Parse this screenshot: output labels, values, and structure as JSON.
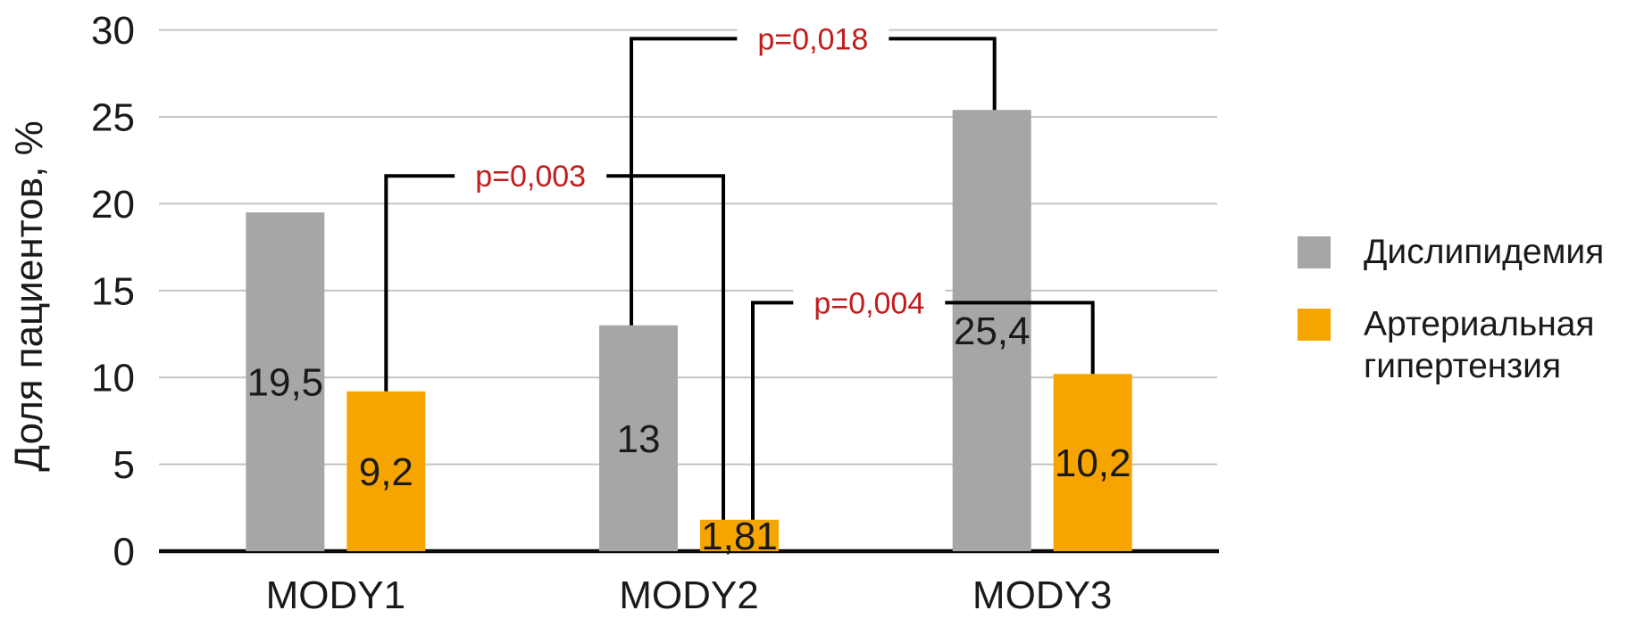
{
  "chart_data": {
    "type": "bar",
    "title": "",
    "categories": [
      "MODY1",
      "MODY2",
      "MODY3"
    ],
    "series": [
      {
        "name": "Дислипидемия",
        "color": "#a6a6a6",
        "values": [
          19.5,
          13,
          25.4
        ],
        "value_labels": [
          "19,5",
          "13",
          "25,4"
        ]
      },
      {
        "name": "Артериальная гипертензия",
        "color": "#f6a500",
        "values": [
          9.2,
          1.81,
          10.2
        ],
        "value_labels": [
          "9,2",
          "1,81",
          "10,2"
        ]
      }
    ],
    "ylabel": "Доля пациентов, %",
    "yticks": [
      0,
      5,
      10,
      15,
      20,
      25,
      30
    ],
    "ylim": [
      0,
      30
    ],
    "grid": true,
    "gridline_color": "#c3c3c3",
    "axis_color": "#0a0a0a",
    "value_label_color": "#1a1a1a",
    "legend_position": "right",
    "significance_color": "#c11c1c",
    "significance_brackets": [
      {
        "label": "p=0,003",
        "from": {
          "category": 0,
          "series": 1
        },
        "to": {
          "category": 1,
          "series": 1
        },
        "y_value": 21.6
      },
      {
        "label": "p=0,018",
        "from": {
          "category": 1,
          "series": 0
        },
        "to": {
          "category": 2,
          "series": 0
        },
        "y_value": 29.5
      },
      {
        "label": "p=0,004",
        "from": {
          "category": 1,
          "series": 1
        },
        "to": {
          "category": 2,
          "series": 1
        },
        "y_value": 14.3
      }
    ]
  },
  "legend": {
    "items": [
      {
        "lines": [
          "Дислипидемия"
        ],
        "color": "#a6a6a6"
      },
      {
        "lines": [
          "Артериальная",
          "гипертензия"
        ],
        "color": "#f6a500"
      }
    ]
  }
}
